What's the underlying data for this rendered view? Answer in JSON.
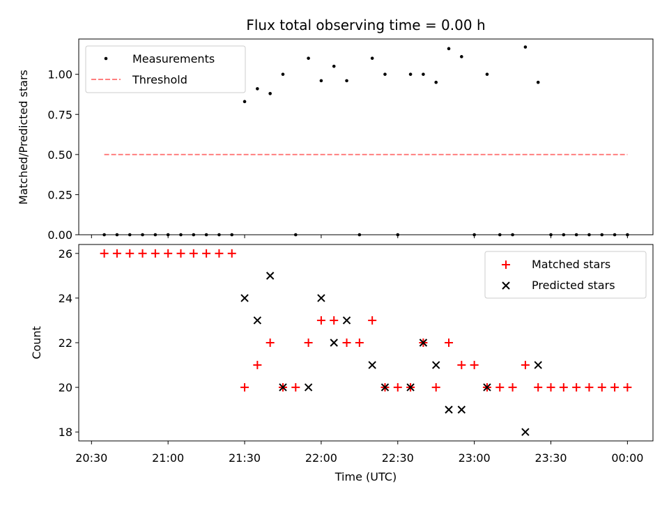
{
  "chart_data": [
    {
      "type": "scatter",
      "title": "Flux total observing time = 0.00 h",
      "xlabel": "",
      "ylabel": "Matched/Predicted stars",
      "ylim": [
        0,
        1.22
      ],
      "xlim": [
        "20:25",
        "00:10"
      ],
      "yticks": [
        "0.00",
        "0.25",
        "0.50",
        "0.75",
        "1.00"
      ],
      "ytick_values": [
        0,
        0.25,
        0.5,
        0.75,
        1.0
      ],
      "legend": {
        "location": "upper left",
        "entries": [
          "Measurements",
          "Threshold"
        ]
      },
      "series": [
        {
          "name": "Measurements",
          "color": "#000000",
          "marker": "dot",
          "x": [
            "20:35",
            "20:40",
            "20:45",
            "20:50",
            "20:55",
            "21:00",
            "21:05",
            "21:10",
            "21:15",
            "21:20",
            "21:25",
            "21:30",
            "21:35",
            "21:40",
            "21:45",
            "21:50",
            "21:55",
            "22:00",
            "22:05",
            "22:10",
            "22:15",
            "22:20",
            "22:25",
            "22:30",
            "22:35",
            "22:40",
            "22:45",
            "22:50",
            "22:55",
            "23:00",
            "23:05",
            "23:10",
            "23:15",
            "23:20",
            "23:25",
            "23:30",
            "23:35",
            "23:40",
            "23:45",
            "23:50",
            "23:55",
            "00:00"
          ],
          "y": [
            0,
            0,
            0,
            0,
            0,
            0,
            0,
            0,
            0,
            0,
            0,
            0.83,
            0.91,
            0.88,
            1.0,
            0,
            1.1,
            0.96,
            1.05,
            0.96,
            0,
            1.1,
            1.0,
            0,
            1.0,
            1.0,
            0.95,
            1.16,
            1.11,
            0,
            1.0,
            0,
            0,
            1.17,
            0.95,
            0,
            0,
            0,
            0,
            0,
            0,
            0
          ]
        },
        {
          "name": "Threshold",
          "color": "#ff7f7f",
          "style": "dashed",
          "x": [
            "20:35",
            "00:00"
          ],
          "y": [
            0.5,
            0.5
          ]
        }
      ]
    },
    {
      "type": "scatter",
      "title": "",
      "xlabel": "Time (UTC)",
      "ylabel": "Count",
      "ylim": [
        17.6,
        26.4
      ],
      "xlim": [
        "20:25",
        "00:10"
      ],
      "yticks": [
        "18",
        "20",
        "22",
        "24",
        "26"
      ],
      "ytick_values": [
        18,
        20,
        22,
        24,
        26
      ],
      "xticks": [
        "20:30",
        "21:00",
        "21:30",
        "22:00",
        "22:30",
        "23:00",
        "23:30",
        "00:00"
      ],
      "legend": {
        "location": "upper right",
        "entries": [
          "Matched stars",
          "Predicted stars"
        ]
      },
      "series": [
        {
          "name": "Matched stars",
          "color": "#ff0000",
          "marker": "plus",
          "x": [
            "20:35",
            "20:40",
            "20:45",
            "20:50",
            "20:55",
            "21:00",
            "21:05",
            "21:10",
            "21:15",
            "21:20",
            "21:25",
            "21:30",
            "21:35",
            "21:40",
            "21:45",
            "21:50",
            "21:55",
            "22:00",
            "22:05",
            "22:10",
            "22:15",
            "22:20",
            "22:25",
            "22:30",
            "22:35",
            "22:40",
            "22:45",
            "22:50",
            "22:55",
            "23:00",
            "23:05",
            "23:10",
            "23:15",
            "23:20",
            "23:25",
            "23:30",
            "23:35",
            "23:40",
            "23:45",
            "23:50",
            "23:55",
            "00:00"
          ],
          "y": [
            26,
            26,
            26,
            26,
            26,
            26,
            26,
            26,
            26,
            26,
            26,
            20,
            21,
            22,
            20,
            20,
            22,
            23,
            23,
            22,
            22,
            23,
            20,
            20,
            20,
            22,
            20,
            22,
            21,
            21,
            20,
            20,
            20,
            21,
            20,
            20,
            20,
            20,
            20,
            20,
            20,
            20
          ]
        },
        {
          "name": "Predicted stars",
          "color": "#000000",
          "marker": "x",
          "x": [
            "21:30",
            "21:35",
            "21:40",
            "21:45",
            "21:55",
            "22:00",
            "22:05",
            "22:10",
            "22:20",
            "22:25",
            "22:35",
            "22:40",
            "22:45",
            "22:50",
            "22:55",
            "23:05",
            "23:20",
            "23:25"
          ],
          "y": [
            24,
            23,
            25,
            20,
            20,
            24,
            22,
            23,
            21,
            20,
            20,
            22,
            21,
            19,
            19,
            20,
            18,
            21
          ]
        }
      ]
    }
  ]
}
